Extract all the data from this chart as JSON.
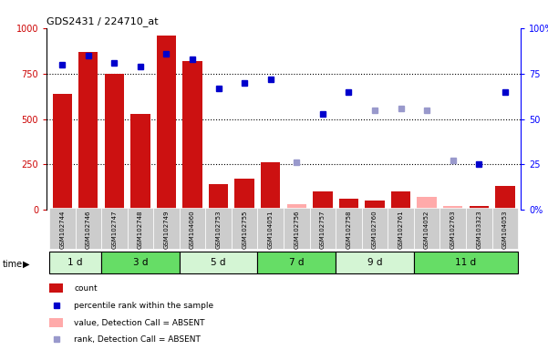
{
  "title": "GDS2431 / 224710_at",
  "samples": [
    "GSM102744",
    "GSM102746",
    "GSM102747",
    "GSM102748",
    "GSM102749",
    "GSM104060",
    "GSM102753",
    "GSM102755",
    "GSM104051",
    "GSM102756",
    "GSM102757",
    "GSM102758",
    "GSM102760",
    "GSM102761",
    "GSM104052",
    "GSM102763",
    "GSM103323",
    "GSM104053"
  ],
  "time_groups": [
    {
      "label": "1 d",
      "start": 0,
      "end": 2,
      "color": "#d4f5d4"
    },
    {
      "label": "3 d",
      "start": 2,
      "end": 5,
      "color": "#66dd66"
    },
    {
      "label": "5 d",
      "start": 5,
      "end": 8,
      "color": "#d4f5d4"
    },
    {
      "label": "7 d",
      "start": 8,
      "end": 11,
      "color": "#66dd66"
    },
    {
      "label": "9 d",
      "start": 11,
      "end": 14,
      "color": "#d4f5d4"
    },
    {
      "label": "11 d",
      "start": 14,
      "end": 18,
      "color": "#66dd66"
    }
  ],
  "count_values": [
    640,
    870,
    750,
    530,
    960,
    820,
    140,
    170,
    260,
    30,
    100,
    60,
    50,
    100,
    70,
    20,
    20,
    130
  ],
  "count_absent": [
    false,
    false,
    false,
    false,
    false,
    false,
    false,
    false,
    false,
    true,
    false,
    false,
    false,
    false,
    true,
    true,
    false,
    false
  ],
  "rank_values": [
    80,
    85,
    81,
    79,
    86,
    83,
    67,
    70,
    72,
    26,
    53,
    65,
    55,
    56,
    55,
    27,
    25,
    65
  ],
  "rank_absent": [
    false,
    false,
    false,
    false,
    false,
    false,
    false,
    false,
    false,
    true,
    false,
    false,
    true,
    true,
    true,
    true,
    false,
    false
  ],
  "ylim_left": [
    0,
    1000
  ],
  "ylim_right": [
    0,
    100
  ],
  "yticks_left": [
    0,
    250,
    500,
    750,
    1000
  ],
  "yticks_right": [
    0,
    25,
    50,
    75,
    100
  ],
  "bar_color_present": "#cc1111",
  "bar_color_absent": "#ffaaaa",
  "rank_color_present": "#0000cc",
  "rank_color_absent": "#9999cc"
}
